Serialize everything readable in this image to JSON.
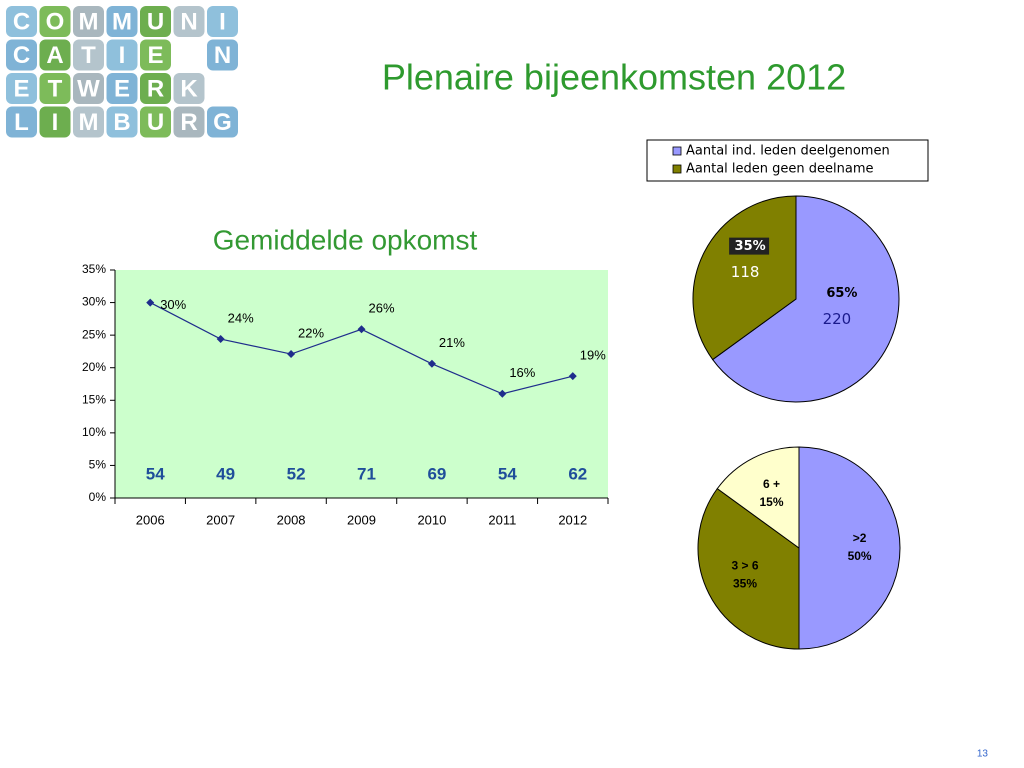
{
  "title": "Plenaire bijeenkomsten 2012",
  "page_number": "13",
  "logo": {
    "rows": [
      [
        "C",
        "O",
        "M",
        "M",
        "U",
        "N",
        "I"
      ],
      [
        "C",
        "A",
        "T",
        "I",
        "E",
        "N"
      ],
      [
        "E",
        "T",
        "W",
        "E",
        "R",
        "K"
      ],
      [
        "L",
        "I",
        "M",
        "B",
        "U",
        "R",
        "G"
      ]
    ]
  },
  "chart_data": [
    {
      "type": "line",
      "title": "Gemiddelde opkomst",
      "categories": [
        "2006",
        "2007",
        "2008",
        "2009",
        "2010",
        "2011",
        "2012"
      ],
      "values": [
        30,
        24.4,
        22.1,
        25.9,
        20.6,
        16,
        18.7
      ],
      "value_labels": [
        "30%",
        "24%",
        "22%",
        "26%",
        "21%",
        "16%",
        "19%"
      ],
      "counts": [
        54,
        49,
        52,
        71,
        69,
        54,
        62
      ],
      "color": "#1f2d8c",
      "ylim": [
        0,
        35
      ],
      "yticks": [
        {
          "value": 0,
          "label": "0%"
        },
        {
          "value": 5,
          "label": "5%"
        },
        {
          "value": 10,
          "label": "10%"
        },
        {
          "value": 15,
          "label": "15%"
        },
        {
          "value": 20,
          "label": "20%"
        },
        {
          "value": 25,
          "label": "25%"
        },
        {
          "value": 30,
          "label": "30%"
        },
        {
          "value": 35,
          "label": "35%"
        }
      ],
      "background": "#ccffcc"
    },
    {
      "type": "pie",
      "categories": [
        "Aantal ind. leden deelgenomen",
        "Aantal leden geen deelname"
      ],
      "values": [
        65,
        35
      ],
      "value_labels": [
        "65%",
        "35%"
      ],
      "counts": [
        220,
        118
      ],
      "colors": [
        "#9999ff",
        "#808000"
      ],
      "legend": true
    },
    {
      "type": "pie",
      "categories": [
        ">2",
        "3 > 6",
        "6 +"
      ],
      "values": [
        50,
        35,
        15
      ],
      "value_labels": [
        "50%",
        "35%",
        "15%"
      ],
      "colors": [
        "#9999ff",
        "#808000",
        "#ffffcc"
      ],
      "legend": false
    }
  ]
}
